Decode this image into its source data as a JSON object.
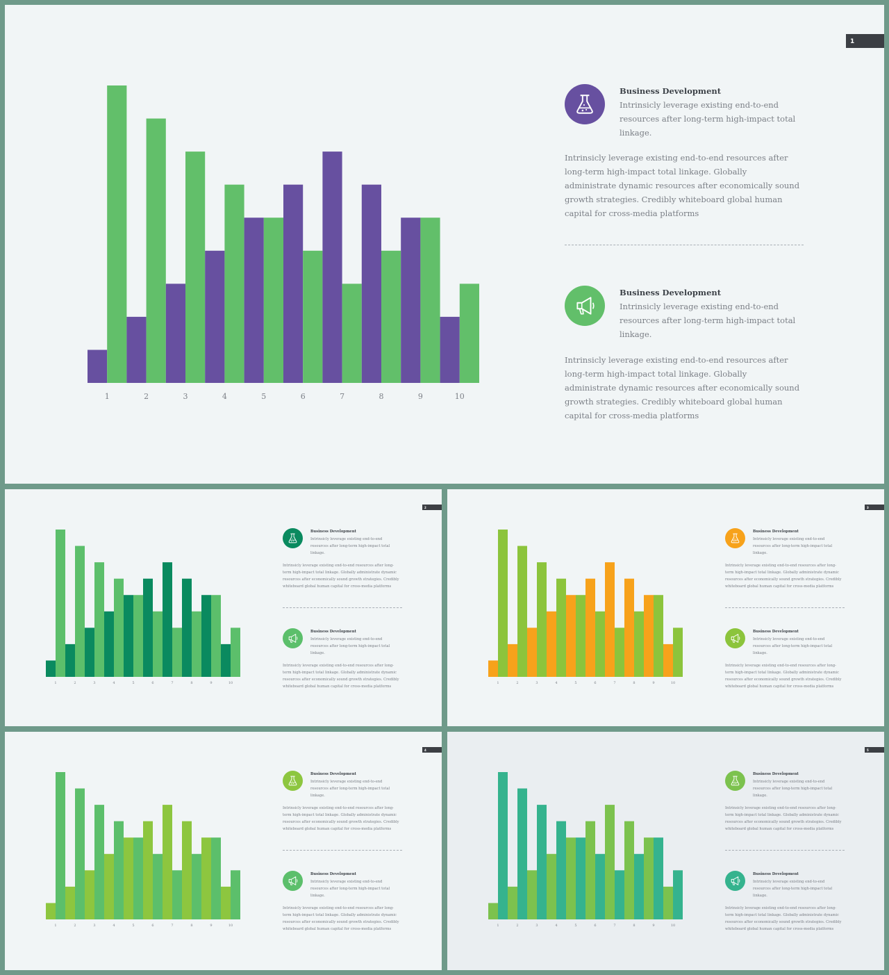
{
  "slides": [
    {
      "page": "1",
      "colors": {
        "a": "#6750a0",
        "b": "#62bf6a",
        "icon1": "#6750a0",
        "icon2": "#62bf6a"
      },
      "blocks": [
        {
          "title": "Business Development",
          "subtitle": "Intrinsicly leverage existing end-to-end resources after long-term high-impact total linkage.",
          "paragraph": "Intrinsicly leverage existing end-to-end resources after long-term high-impact total linkage. Globally administrate dynamic resources after economically sound growth strategies. Credibly whiteboard global human capital for cross-media platforms",
          "icon": "flask-icon"
        },
        {
          "title": "Business Development",
          "subtitle": "Intrinsicly leverage existing end-to-end resources after long-term high-impact total linkage.",
          "paragraph": "Intrinsicly leverage existing end-to-end resources after long-term high-impact total linkage. Globally administrate dynamic resources after economically sound growth strategies. Credibly whiteboard global human capital for cross-media platforms",
          "icon": "megaphone-icon"
        }
      ]
    },
    {
      "page": "2",
      "colors": {
        "a": "#0a8a5f",
        "b": "#5cbf6b",
        "icon1": "#0a8a5f",
        "icon2": "#5cbf6b"
      },
      "blocks": [
        {
          "title": "Business Development",
          "subtitle": "Intrinsicly leverage existing end-to-end resources after long-term high-impact total linkage.",
          "paragraph": "Intrinsicly leverage existing end-to-end resources after long-term high-impact total linkage. Globally administrate dynamic resources after economically sound growth strategies. Credibly whiteboard global human capital for cross-media platforms",
          "icon": "flask-icon"
        },
        {
          "title": "Business Development",
          "subtitle": "Intrinsicly leverage existing end-to-end resources after long-term high-impact total linkage.",
          "paragraph": "Intrinsicly leverage existing end-to-end resources after long-term high-impact total linkage. Globally administrate dynamic resources after economically sound growth strategies. Credibly whiteboard global human capital for cross-media platforms",
          "icon": "megaphone-icon"
        }
      ]
    },
    {
      "page": "3",
      "colors": {
        "a": "#f7a21b",
        "b": "#8cc43c",
        "icon1": "#f7a21b",
        "icon2": "#8cc43c"
      },
      "blocks": [
        {
          "title": "Business Development",
          "subtitle": "Intrinsicly leverage existing end-to-end resources after long-term high-impact total linkage.",
          "paragraph": "Intrinsicly leverage existing end-to-end resources after long-term high-impact total linkage. Globally administrate dynamic resources after economically sound growth strategies. Credibly whiteboard global human capital for cross-media platforms",
          "icon": "flask-icon"
        },
        {
          "title": "Business Development",
          "subtitle": "Intrinsicly leverage existing end-to-end resources after long-term high-impact total linkage.",
          "paragraph": "Intrinsicly leverage existing end-to-end resources after long-term high-impact total linkage. Globally administrate dynamic resources after economically sound growth strategies. Credibly whiteboard global human capital for cross-media platforms",
          "icon": "megaphone-icon"
        }
      ]
    },
    {
      "page": "4",
      "colors": {
        "a": "#8dc63f",
        "b": "#5cbf6b",
        "icon1": "#8dc63f",
        "icon2": "#5cbf6b"
      },
      "blocks": [
        {
          "title": "Business Development",
          "subtitle": "Intrinsicly leverage existing end-to-end resources after long-term high-impact total linkage.",
          "paragraph": "Intrinsicly leverage existing end-to-end resources after long-term high-impact total linkage. Globally administrate dynamic resources after economically sound growth strategies. Credibly whiteboard global human capital for cross-media platforms",
          "icon": "flask-icon"
        },
        {
          "title": "Business Development",
          "subtitle": "Intrinsicly leverage existing end-to-end resources after long-term high-impact total linkage.",
          "paragraph": "Intrinsicly leverage existing end-to-end resources after long-term high-impact total linkage. Globally administrate dynamic resources after economically sound growth strategies. Credibly whiteboard global human capital for cross-media platforms",
          "icon": "megaphone-icon"
        }
      ]
    },
    {
      "page": "5",
      "colors": {
        "a": "#7cc24e",
        "b": "#35b38e",
        "icon1": "#7cc24e",
        "icon2": "#35b38e"
      },
      "blocks": [
        {
          "title": "Business Development",
          "subtitle": "Intrinsicly leverage existing end-to-end resources after long-term high-impact total linkage.",
          "paragraph": "Intrinsicly leverage existing end-to-end resources after long-term high-impact total linkage. Globally administrate dynamic resources after economically sound growth strategies. Credibly whiteboard global human capital for cross-media platforms",
          "icon": "flask-icon"
        },
        {
          "title": "Business Development",
          "subtitle": "Intrinsicly leverage existing end-to-end resources after long-term high-impact total linkage.",
          "paragraph": "Intrinsicly leverage existing end-to-end resources after long-term high-impact total linkage. Globally administrate dynamic resources after economically sound growth strategies. Credibly whiteboard global human capital for cross-media platforms",
          "icon": "megaphone-icon"
        }
      ]
    }
  ],
  "chart_data": [
    {
      "type": "bar",
      "categories": [
        "1",
        "2",
        "3",
        "4",
        "5",
        "6",
        "7",
        "8",
        "9",
        "10"
      ],
      "series": [
        {
          "values": [
            1,
            2,
            3,
            4,
            5,
            6,
            7,
            6,
            5,
            2
          ]
        },
        {
          "values": [
            9,
            8,
            7,
            6,
            5,
            4,
            3,
            4,
            5,
            3
          ]
        }
      ],
      "ylim": [
        0,
        9
      ],
      "grid": false
    },
    {
      "type": "bar",
      "categories": [
        "1",
        "2",
        "3",
        "4",
        "5",
        "6",
        "7",
        "8",
        "9",
        "10"
      ],
      "series": [
        {
          "values": [
            1,
            2,
            3,
            4,
            5,
            6,
            7,
            6,
            5,
            2
          ]
        },
        {
          "values": [
            9,
            8,
            7,
            6,
            5,
            4,
            3,
            4,
            5,
            3
          ]
        }
      ],
      "ylim": [
        0,
        9
      ],
      "grid": false
    },
    {
      "type": "bar",
      "categories": [
        "1",
        "2",
        "3",
        "4",
        "5",
        "6",
        "7",
        "8",
        "9",
        "10"
      ],
      "series": [
        {
          "values": [
            1,
            2,
            3,
            4,
            5,
            6,
            7,
            6,
            5,
            2
          ]
        },
        {
          "values": [
            9,
            8,
            7,
            6,
            5,
            4,
            3,
            4,
            5,
            3
          ]
        }
      ],
      "ylim": [
        0,
        9
      ],
      "grid": false
    },
    {
      "type": "bar",
      "categories": [
        "1",
        "2",
        "3",
        "4",
        "5",
        "6",
        "7",
        "8",
        "9",
        "10"
      ],
      "series": [
        {
          "values": [
            1,
            2,
            3,
            4,
            5,
            6,
            7,
            6,
            5,
            2
          ]
        },
        {
          "values": [
            9,
            8,
            7,
            6,
            5,
            4,
            3,
            4,
            5,
            3
          ]
        }
      ],
      "ylim": [
        0,
        9
      ],
      "grid": false
    },
    {
      "type": "bar",
      "categories": [
        "1",
        "2",
        "3",
        "4",
        "5",
        "6",
        "7",
        "8",
        "9",
        "10"
      ],
      "series": [
        {
          "values": [
            1,
            2,
            3,
            4,
            5,
            6,
            7,
            6,
            5,
            2
          ]
        },
        {
          "values": [
            9,
            8,
            7,
            6,
            5,
            4,
            3,
            4,
            5,
            3
          ]
        }
      ],
      "ylim": [
        0,
        9
      ],
      "grid": false
    }
  ]
}
